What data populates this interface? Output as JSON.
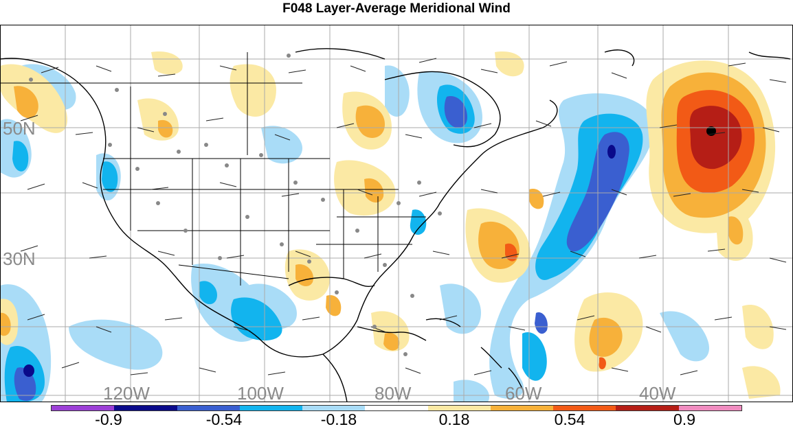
{
  "title": "F048 Layer-Average Meridional Wind",
  "lat_labels": [
    "50N",
    "30N"
  ],
  "lon_labels": [
    "120W",
    "100W",
    "80W",
    "60W",
    "40W"
  ],
  "colorbar": {
    "labels": [
      "-0.9",
      "-0.54",
      "-0.18",
      "0.18",
      "0.54",
      "0.9"
    ],
    "colors": [
      "#9c3fd6",
      "#0a0a8a",
      "#3a5fd0",
      "#12b4ee",
      "#a9dcf7",
      "#ffffff",
      "#fbe9a4",
      "#f7b13a",
      "#f25a16",
      "#b51e16",
      "#f08cc0"
    ]
  }
}
